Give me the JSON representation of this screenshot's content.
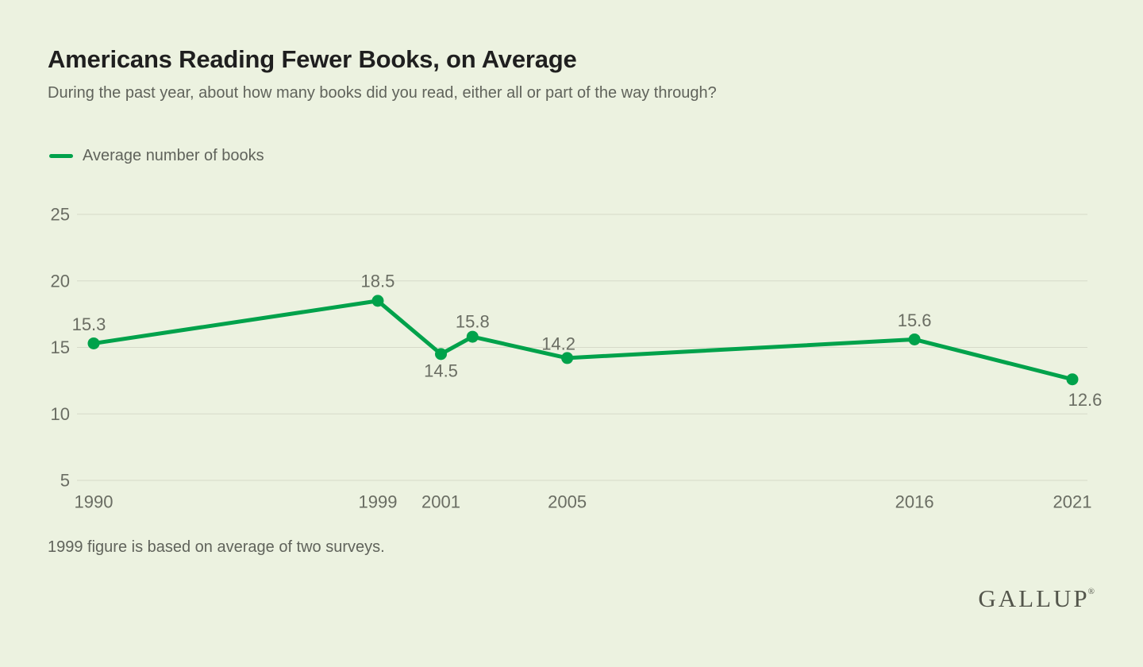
{
  "page": {
    "title": "Americans Reading Fewer Books, on Average",
    "subtitle": "During the past year, about how many books did you read, either all or part of the way through?",
    "footnote": "1999 figure is based on average of two surveys.",
    "brand": {
      "name": "GALLUP",
      "mark": "®"
    }
  },
  "legend": {
    "label": "Average number of books",
    "position": "top-left"
  },
  "colors": {
    "background": "#ECF2E0",
    "line_green": "#00A24B",
    "grid": "#D6DAC9",
    "tick_text": "#6A6D63",
    "data_label_text": "#6A6D63",
    "title_text": "#1F1F1F",
    "muted_text": "#60635B",
    "brand_text": "#53554B"
  },
  "chart_data": {
    "type": "line",
    "title": "Americans Reading Fewer Books, on Average",
    "xlabel": "",
    "ylabel": "",
    "xlim": [
      1990,
      2021
    ],
    "ylim": [
      5,
      25
    ],
    "grid": "horizontal",
    "legend_position": "top-left",
    "y_ticks": [
      5,
      10,
      15,
      20,
      25
    ],
    "x_ticks": [
      {
        "year": 1990,
        "label": "1990"
      },
      {
        "year": 1999,
        "label": "1999"
      },
      {
        "year": 2001,
        "label": "2001"
      },
      {
        "year": 2005,
        "label": "2005"
      },
      {
        "year": 2016,
        "label": "2016"
      },
      {
        "year": 2021,
        "label": "2021"
      }
    ],
    "series": [
      {
        "name": "Average number of books",
        "color": "#00A24B",
        "points": [
          {
            "year": 1990,
            "value": 15.3,
            "label": "15.3",
            "label_dx": -6,
            "label_dy": -24
          },
          {
            "year": 1999,
            "value": 18.5,
            "label": "18.5",
            "label_dx": 0,
            "label_dy": -25
          },
          {
            "year": 2001,
            "value": 14.5,
            "label": "14.5",
            "label_dx": 0,
            "label_dy": 21
          },
          {
            "year": 2002,
            "value": 15.8,
            "label": "15.8",
            "label_dx": 0,
            "label_dy": -19
          },
          {
            "year": 2005,
            "value": 14.2,
            "label": "14.2",
            "label_dx": -11,
            "label_dy": -18
          },
          {
            "year": 2016,
            "value": 15.6,
            "label": "15.6",
            "label_dx": 0,
            "label_dy": -24
          },
          {
            "year": 2021,
            "value": 12.6,
            "label": "12.6",
            "label_dx": 16,
            "label_dy": 26
          }
        ]
      }
    ]
  }
}
